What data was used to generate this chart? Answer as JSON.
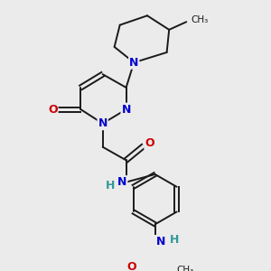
{
  "bg_color": "#ebebeb",
  "bond_color": "#1a1a1a",
  "atom_colors": {
    "N": "#0000cc",
    "O": "#cc0000",
    "H": "#339999",
    "C": "#1a1a1a"
  },
  "font_size": 9,
  "fig_width": 3.0,
  "fig_height": 3.0,
  "dpi": 100
}
